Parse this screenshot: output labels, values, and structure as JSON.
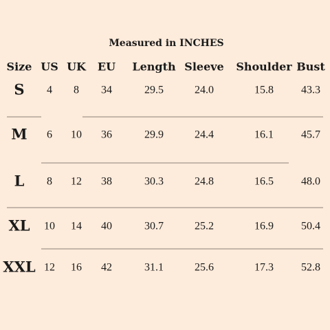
{
  "title": "Measured in INCHES",
  "table": {
    "header": [
      "Size",
      "US",
      "UK",
      "EU",
      "Length",
      "Sleeve",
      "Shoulder",
      "Bust"
    ],
    "rows": [
      [
        "S",
        "4",
        "8",
        "34",
        "29.5",
        "24.0",
        "15.8",
        "43.3"
      ],
      [
        "M",
        "6",
        "10",
        "36",
        "29.9",
        "24.4",
        "16.1",
        "45.7"
      ],
      [
        "L",
        "8",
        "12",
        "38",
        "30.3",
        "24.8",
        "16.5",
        "48.0"
      ],
      [
        "XL",
        "10",
        "14",
        "40",
        "30.7",
        "25.2",
        "16.9",
        "50.4"
      ],
      [
        "XXL",
        "12",
        "16",
        "42",
        "31.1",
        "25.6",
        "17.3",
        "52.8"
      ]
    ]
  }
}
